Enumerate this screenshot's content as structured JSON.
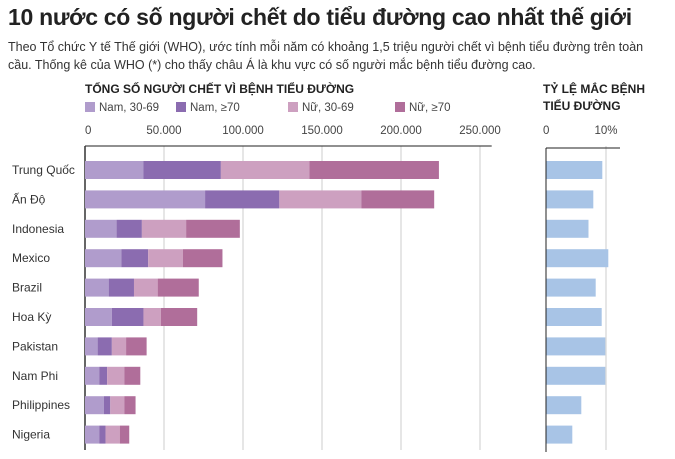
{
  "title": "10 nước có số người chết do tiểu đường cao nhất thế giới",
  "subtitle": "Theo Tổ chức Y tế Thế giới (WHO), ước tính mỗi năm có khoảng 1,5 triệu người chết vì bệnh tiểu đường trên toàn cầu. Thống kê của WHO (*) cho thấy châu Á là khu vực có số người mắc bệnh tiểu đường cao.",
  "chart_data": [
    {
      "type": "bar",
      "orientation": "horizontal",
      "stacked": true,
      "title": "TỔNG SỐ NGƯỜI CHẾT VÌ BỆNH TIỂU ĐƯỜNG",
      "categories": [
        "Trung Quốc",
        "Ấn Độ",
        "Indonesia",
        "Mexico",
        "Brazil",
        "Hoa Kỳ",
        "Pakistan",
        "Nam Phi",
        "Philippines",
        "Nigeria"
      ],
      "series": [
        {
          "name": "Nam, 30-69",
          "color": "#b09ccc",
          "values": [
            37000,
            76000,
            20000,
            23000,
            15000,
            17000,
            8000,
            9000,
            12000,
            9000
          ]
        },
        {
          "name": "Nam, ≥70",
          "color": "#8b6cb0",
          "values": [
            49000,
            47000,
            16000,
            17000,
            16000,
            20000,
            9000,
            5000,
            4000,
            4000
          ]
        },
        {
          "name": "Nữ, 30-69",
          "color": "#cda0c0",
          "values": [
            56000,
            52000,
            28000,
            22000,
            15000,
            11000,
            9000,
            11000,
            9000,
            9000
          ]
        },
        {
          "name": "Nữ, ≥70",
          "color": "#b06e9a",
          "values": [
            82000,
            46000,
            34000,
            25000,
            26000,
            23000,
            13000,
            10000,
            7000,
            6000
          ]
        }
      ],
      "xlim": [
        0,
        260000
      ],
      "ticks": [
        "0",
        "50.000",
        "100.000",
        "150.000",
        "200.000",
        "250.000"
      ],
      "tick_values": [
        0,
        50000,
        100000,
        150000,
        200000,
        250000
      ],
      "grid": true,
      "legend": "top"
    },
    {
      "type": "bar",
      "orientation": "horizontal",
      "title": "TỶ LỆ MẮC BỆNH TIỂU ĐƯỜNG",
      "title_lines": [
        "TỶ LỆ MẮC BỆNH",
        "TIỂU ĐƯỜNG"
      ],
      "categories": [
        "Trung Quốc",
        "Ấn Độ",
        "Indonesia",
        "Mexico",
        "Brazil",
        "Hoa Kỳ",
        "Pakistan",
        "Nam Phi",
        "Philippines",
        "Nigeria"
      ],
      "values": [
        9.3,
        7.8,
        7.0,
        10.3,
        8.2,
        9.2,
        9.8,
        9.8,
        5.8,
        4.3
      ],
      "unit": "%",
      "color": "#a8c4e6",
      "xlim": [
        0,
        12.5
      ],
      "ticks": [
        "0",
        "10%"
      ],
      "tick_values": [
        0,
        10
      ],
      "grid": true
    }
  ]
}
